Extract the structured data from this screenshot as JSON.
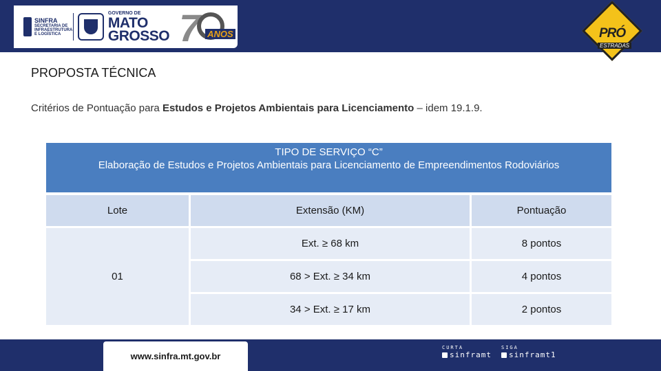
{
  "header": {
    "sinfra": {
      "title": "SINFRA",
      "lines": [
        "SECRETARIA DE",
        "INFRAESTRUTURA",
        "E LOGÍSTICA"
      ]
    },
    "governo": {
      "small": "GOVERNO DE",
      "line1": "MATO",
      "line2": "GROSSO"
    },
    "anos": {
      "number": "7",
      "label": "ANOS"
    },
    "program": {
      "title": "PRÓ",
      "subtitle": "ESTRADAS"
    }
  },
  "heading": "PROPOSTA TÉCNICA",
  "criteria": {
    "prefix": "Critérios de Pontuação  para ",
    "bold": "Estudos e Projetos Ambientais para Licenciamento",
    "suffix": " – idem 19.1.9."
  },
  "table": {
    "title_line1": "TIPO DE SERVIÇO “C”",
    "title_line2": "Elaboração de Estudos e Projetos Ambientais para Licenciamento de Empreendimentos Rodoviários",
    "columns": [
      "Lote",
      "Extensão (KM)",
      "Pontuação"
    ],
    "lote": "01",
    "rows": [
      {
        "extensao": "Ext. ≥ 68 km",
        "pontuacao": "8 pontos"
      },
      {
        "extensao": "68 > Ext. ≥ 34 km",
        "pontuacao": "4 pontos"
      },
      {
        "extensao": "34 > Ext. ≥ 17 km",
        "pontuacao": "2 pontos"
      }
    ]
  },
  "footer": {
    "url": "www.sinfra.mt.gov.br",
    "social1": {
      "top": "CURTA",
      "name": "sinframt"
    },
    "social2": {
      "top": "SIGA",
      "name": "sinframt1"
    }
  },
  "colors": {
    "navy": "#1f2f6b",
    "table_header": "#4a7ec0",
    "cell": "#e6ecf6",
    "sign": "#f4c21a"
  }
}
